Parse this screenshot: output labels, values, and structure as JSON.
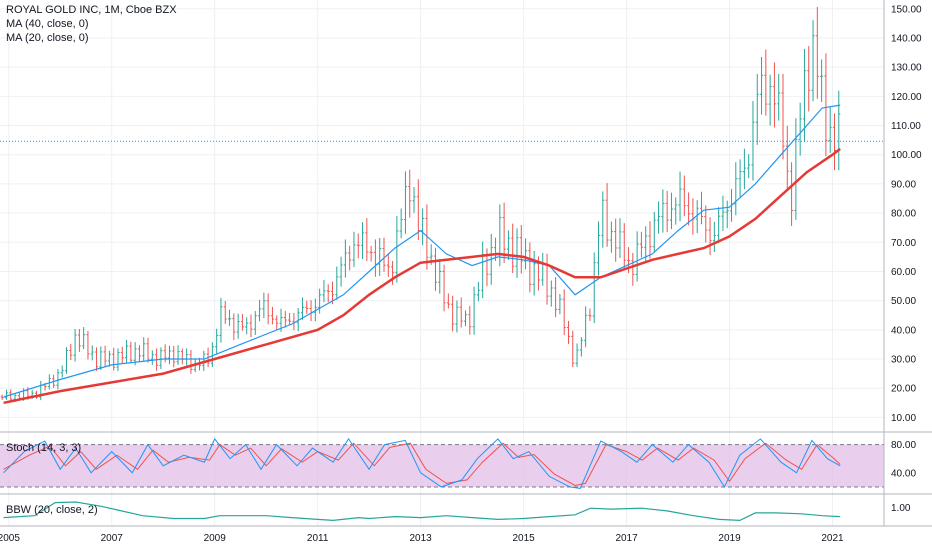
{
  "legend": {
    "title": "ROYAL GOLD INC, 1M, Cboe BZX",
    "ma40": "MA (40, close, 0)",
    "ma20": "MA (20, close, 0)"
  },
  "indicators": {
    "stoch_label": "Stoch (14, 3, 3)",
    "bbw_label": "BBW (20, close, 2)"
  },
  "colors": {
    "up": "#26a69a",
    "down": "#ef5350",
    "ma40": "#e53935",
    "ma20": "#2196f3",
    "stoch_k": "#2196f3",
    "stoch_d": "#ef5350",
    "stoch_band": "#e1bee7",
    "bbw": "#26a69a",
    "grid": "#eef0f3"
  },
  "chart_data": [
    {
      "type": "candlestick",
      "title": "ROYAL GOLD INC, 1M, Cboe BZX",
      "x_range": [
        2004.83,
        2022.0
      ],
      "ylim": [
        5,
        153
      ],
      "y_ticks": [
        "10.00",
        "20.00",
        "30.00",
        "40.00",
        "50.00",
        "60.00",
        "70.00",
        "80.00",
        "90.00",
        "100.00",
        "110.00",
        "120.00",
        "130.00",
        "140.00",
        "150.00"
      ],
      "x_ticks": [
        "2005",
        "2007",
        "2009",
        "2011",
        "2013",
        "2015",
        "2017",
        "2019",
        "2021"
      ],
      "last_close": 104.6,
      "close_series": [
        [
          2004.9,
          17
        ],
        [
          2005.5,
          18
        ],
        [
          2006.0,
          25
        ],
        [
          2006.3,
          38
        ],
        [
          2006.7,
          30
        ],
        [
          2007.0,
          30
        ],
        [
          2007.5,
          33
        ],
        [
          2007.9,
          30
        ],
        [
          2008.2,
          32
        ],
        [
          2008.6,
          28
        ],
        [
          2008.9,
          30
        ],
        [
          2009.1,
          45
        ],
        [
          2009.6,
          40
        ],
        [
          2009.9,
          48
        ],
        [
          2010.3,
          42
        ],
        [
          2010.9,
          48
        ],
        [
          2011.3,
          55
        ],
        [
          2011.7,
          70
        ],
        [
          2012.0,
          68
        ],
        [
          2012.4,
          60
        ],
        [
          2012.8,
          92
        ],
        [
          2012.95,
          76
        ],
        [
          2013.2,
          65
        ],
        [
          2013.5,
          48
        ],
        [
          2013.9,
          42
        ],
        [
          2014.2,
          60
        ],
        [
          2014.5,
          72
        ],
        [
          2014.8,
          68
        ],
        [
          2015.1,
          62
        ],
        [
          2015.5,
          55
        ],
        [
          2015.8,
          42
        ],
        [
          2016.0,
          28
        ],
        [
          2016.3,
          50
        ],
        [
          2016.5,
          80
        ],
        [
          2016.8,
          70
        ],
        [
          2017.1,
          62
        ],
        [
          2017.5,
          75
        ],
        [
          2017.8,
          82
        ],
        [
          2018.1,
          84
        ],
        [
          2018.4,
          78
        ],
        [
          2018.7,
          72
        ],
        [
          2019.0,
          85
        ],
        [
          2019.3,
          95
        ],
        [
          2019.55,
          120
        ],
        [
          2019.8,
          125
        ],
        [
          2020.0,
          110
        ],
        [
          2020.2,
          85
        ],
        [
          2020.45,
          125
        ],
        [
          2020.6,
          138
        ],
        [
          2020.8,
          118
        ],
        [
          2021.0,
          105
        ],
        [
          2021.15,
          104.6
        ]
      ],
      "series": [
        {
          "name": "MA (40, close, 0)",
          "values": [
            [
              2004.9,
              15
            ],
            [
              2006.0,
              19
            ],
            [
              2007.0,
              22
            ],
            [
              2008.0,
              25
            ],
            [
              2009.0,
              30
            ],
            [
              2010.0,
              35
            ],
            [
              2011.0,
              40
            ],
            [
              2011.5,
              45
            ],
            [
              2012.0,
              52
            ],
            [
              2012.5,
              58
            ],
            [
              2013.0,
              63
            ],
            [
              2013.5,
              64
            ],
            [
              2014.0,
              65
            ],
            [
              2014.5,
              66
            ],
            [
              2015.0,
              65
            ],
            [
              2015.5,
              62
            ],
            [
              2016.0,
              58
            ],
            [
              2016.5,
              58
            ],
            [
              2017.0,
              61
            ],
            [
              2017.5,
              64
            ],
            [
              2018.0,
              66
            ],
            [
              2018.5,
              68
            ],
            [
              2019.0,
              72
            ],
            [
              2019.5,
              78
            ],
            [
              2020.0,
              86
            ],
            [
              2020.5,
              94
            ],
            [
              2021.0,
              100
            ],
            [
              2021.15,
              102
            ]
          ]
        },
        {
          "name": "MA (20, close, 0)",
          "values": [
            [
              2004.9,
              17
            ],
            [
              2006.0,
              23
            ],
            [
              2007.0,
              28
            ],
            [
              2008.0,
              30
            ],
            [
              2008.8,
              30
            ],
            [
              2009.5,
              35
            ],
            [
              2010.5,
              42
            ],
            [
              2011.5,
              52
            ],
            [
              2012.0,
              60
            ],
            [
              2012.5,
              68
            ],
            [
              2013.0,
              74
            ],
            [
              2013.5,
              66
            ],
            [
              2014.0,
              62
            ],
            [
              2014.5,
              65
            ],
            [
              2015.0,
              64
            ],
            [
              2015.5,
              62
            ],
            [
              2016.0,
              52
            ],
            [
              2016.5,
              58
            ],
            [
              2017.0,
              62
            ],
            [
              2017.5,
              66
            ],
            [
              2018.0,
              74
            ],
            [
              2018.5,
              81
            ],
            [
              2019.0,
              82
            ],
            [
              2019.5,
              90
            ],
            [
              2020.0,
              100
            ],
            [
              2020.5,
              110
            ],
            [
              2020.8,
              116
            ],
            [
              2021.15,
              117
            ]
          ]
        }
      ]
    },
    {
      "type": "line",
      "title": "Stoch (14, 3, 3)",
      "ylim": [
        10,
        95
      ],
      "y_ticks": [
        "40.00",
        "80.00"
      ],
      "bands": [
        20,
        80
      ],
      "series": [
        {
          "name": "%K",
          "values": [
            [
              2004.9,
              40
            ],
            [
              2005.3,
              70
            ],
            [
              2005.7,
              85
            ],
            [
              2006.0,
              45
            ],
            [
              2006.3,
              75
            ],
            [
              2006.6,
              40
            ],
            [
              2007.0,
              70
            ],
            [
              2007.4,
              40
            ],
            [
              2007.7,
              80
            ],
            [
              2008.0,
              50
            ],
            [
              2008.4,
              65
            ],
            [
              2008.8,
              55
            ],
            [
              2009.0,
              88
            ],
            [
              2009.3,
              60
            ],
            [
              2009.6,
              80
            ],
            [
              2009.9,
              45
            ],
            [
              2010.2,
              80
            ],
            [
              2010.6,
              50
            ],
            [
              2010.9,
              75
            ],
            [
              2011.3,
              55
            ],
            [
              2011.6,
              88
            ],
            [
              2012.0,
              45
            ],
            [
              2012.3,
              80
            ],
            [
              2012.7,
              86
            ],
            [
              2013.0,
              40
            ],
            [
              2013.4,
              20
            ],
            [
              2013.8,
              30
            ],
            [
              2014.1,
              60
            ],
            [
              2014.5,
              88
            ],
            [
              2014.8,
              60
            ],
            [
              2015.1,
              70
            ],
            [
              2015.5,
              35
            ],
            [
              2015.9,
              20
            ],
            [
              2016.1,
              18
            ],
            [
              2016.5,
              85
            ],
            [
              2016.9,
              70
            ],
            [
              2017.2,
              55
            ],
            [
              2017.5,
              80
            ],
            [
              2017.9,
              55
            ],
            [
              2018.2,
              80
            ],
            [
              2018.6,
              55
            ],
            [
              2018.9,
              20
            ],
            [
              2019.2,
              65
            ],
            [
              2019.6,
              88
            ],
            [
              2020.0,
              55
            ],
            [
              2020.3,
              40
            ],
            [
              2020.6,
              86
            ],
            [
              2020.9,
              60
            ],
            [
              2021.15,
              50
            ]
          ]
        },
        {
          "name": "%D",
          "values": [
            [
              2004.9,
              45
            ],
            [
              2005.4,
              65
            ],
            [
              2005.8,
              78
            ],
            [
              2006.1,
              50
            ],
            [
              2006.4,
              70
            ],
            [
              2006.7,
              45
            ],
            [
              2007.1,
              65
            ],
            [
              2007.5,
              45
            ],
            [
              2007.8,
              72
            ],
            [
              2008.1,
              55
            ],
            [
              2008.5,
              62
            ],
            [
              2008.9,
              58
            ],
            [
              2009.1,
              80
            ],
            [
              2009.4,
              65
            ],
            [
              2009.7,
              75
            ],
            [
              2010.0,
              50
            ],
            [
              2010.3,
              74
            ],
            [
              2010.7,
              55
            ],
            [
              2011.0,
              70
            ],
            [
              2011.4,
              58
            ],
            [
              2011.7,
              82
            ],
            [
              2012.1,
              50
            ],
            [
              2012.4,
              76
            ],
            [
              2012.8,
              82
            ],
            [
              2013.1,
              45
            ],
            [
              2013.5,
              25
            ],
            [
              2013.9,
              30
            ],
            [
              2014.2,
              55
            ],
            [
              2014.6,
              82
            ],
            [
              2014.9,
              62
            ],
            [
              2015.2,
              66
            ],
            [
              2015.6,
              38
            ],
            [
              2016.0,
              22
            ],
            [
              2016.2,
              25
            ],
            [
              2016.6,
              80
            ],
            [
              2017.0,
              70
            ],
            [
              2017.3,
              58
            ],
            [
              2017.6,
              75
            ],
            [
              2018.0,
              58
            ],
            [
              2018.3,
              75
            ],
            [
              2018.7,
              58
            ],
            [
              2019.0,
              28
            ],
            [
              2019.3,
              60
            ],
            [
              2019.7,
              82
            ],
            [
              2020.1,
              58
            ],
            [
              2020.4,
              45
            ],
            [
              2020.7,
              80
            ],
            [
              2021.0,
              62
            ],
            [
              2021.15,
              52
            ]
          ]
        }
      ]
    },
    {
      "type": "area",
      "title": "BBW (20, close, 2)",
      "ylim": [
        0,
        1.6
      ],
      "y_ticks": [
        "1.00"
      ],
      "series": [
        {
          "name": "BBW (20, close, 2)",
          "values": [
            [
              2004.9,
              0.45
            ],
            [
              2005.5,
              0.55
            ],
            [
              2005.9,
              1.25
            ],
            [
              2006.3,
              1.28
            ],
            [
              2006.8,
              1.05
            ],
            [
              2007.2,
              0.8
            ],
            [
              2007.6,
              0.55
            ],
            [
              2008.2,
              0.4
            ],
            [
              2008.8,
              0.4
            ],
            [
              2009.1,
              0.55
            ],
            [
              2009.5,
              0.55
            ],
            [
              2010.0,
              0.55
            ],
            [
              2010.5,
              0.45
            ],
            [
              2011.0,
              0.35
            ],
            [
              2011.3,
              0.3
            ],
            [
              2011.8,
              0.45
            ],
            [
              2012.0,
              0.4
            ],
            [
              2012.5,
              0.5
            ],
            [
              2013.0,
              0.45
            ],
            [
              2013.5,
              0.55
            ],
            [
              2014.0,
              0.45
            ],
            [
              2014.5,
              0.35
            ],
            [
              2015.0,
              0.4
            ],
            [
              2015.5,
              0.5
            ],
            [
              2016.0,
              0.6
            ],
            [
              2016.3,
              0.95
            ],
            [
              2016.7,
              0.9
            ],
            [
              2017.3,
              0.95
            ],
            [
              2017.8,
              0.8
            ],
            [
              2018.3,
              0.55
            ],
            [
              2018.8,
              0.35
            ],
            [
              2019.2,
              0.3
            ],
            [
              2019.5,
              0.7
            ],
            [
              2019.9,
              0.7
            ],
            [
              2020.4,
              0.65
            ],
            [
              2020.8,
              0.55
            ],
            [
              2021.15,
              0.5
            ]
          ]
        }
      ]
    }
  ]
}
